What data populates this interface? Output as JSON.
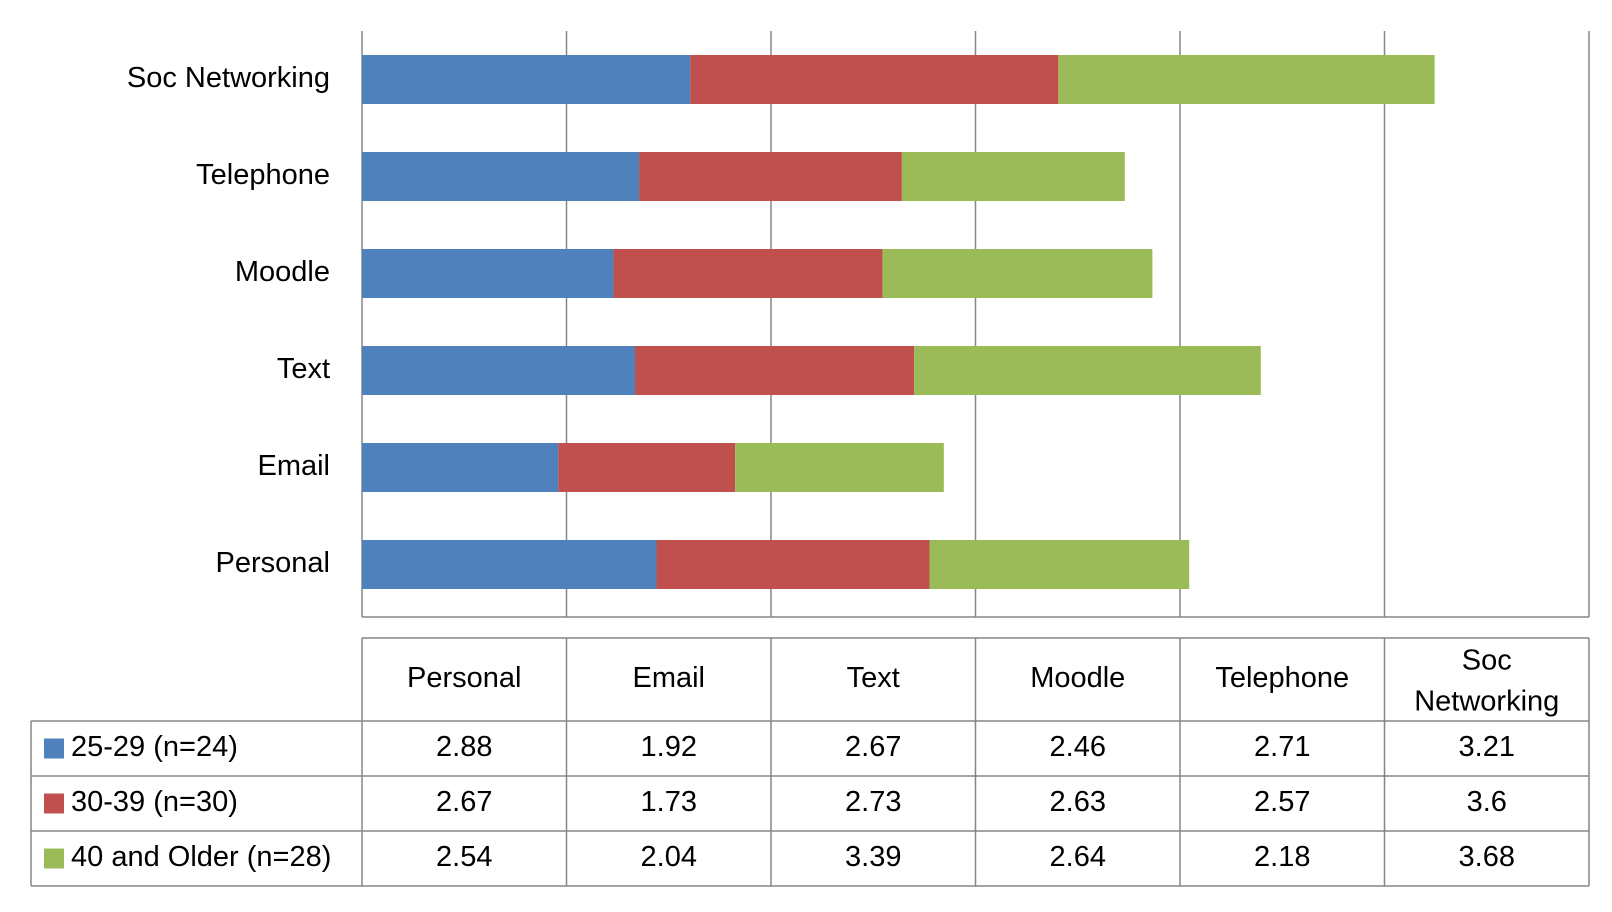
{
  "colors": {
    "series": [
      "#4F81BD",
      "#C0504D",
      "#9BBB59"
    ],
    "grid": "#868686",
    "border": "#868686"
  },
  "chart_data": {
    "type": "bar",
    "orientation": "horizontal",
    "stacked": true,
    "categories": [
      "Personal",
      "Email",
      "Text",
      "Moodle",
      "Telephone",
      "Soc Networking"
    ],
    "series": [
      {
        "name": "25-29 (n=24)",
        "values": [
          2.88,
          1.92,
          2.67,
          2.46,
          2.71,
          3.21
        ]
      },
      {
        "name": "30-39 (n=30)",
        "values": [
          2.67,
          1.73,
          2.73,
          2.63,
          2.57,
          3.6
        ]
      },
      {
        "name": "40 and Older (n=28)",
        "values": [
          2.54,
          2.04,
          3.39,
          2.64,
          2.18,
          3.68
        ]
      }
    ],
    "xlim": [
      0,
      12
    ],
    "grid": true,
    "legend": "data-table",
    "data_table": {
      "header": [
        "Personal",
        "Email",
        "Text",
        "Moodle",
        "Telephone",
        "Soc Networking"
      ],
      "rows": [
        {
          "label": "25-29 (n=24)",
          "cells": [
            "2.88",
            "1.92",
            "2.67",
            "2.46",
            "2.71",
            "3.21"
          ]
        },
        {
          "label": "30-39 (n=30)",
          "cells": [
            "2.67",
            "1.73",
            "2.73",
            "2.63",
            "2.57",
            "3.6"
          ]
        },
        {
          "label": "40 and Older (n=28)",
          "cells": [
            "2.54",
            "2.04",
            "3.39",
            "2.64",
            "2.18",
            "3.68"
          ]
        }
      ]
    }
  }
}
